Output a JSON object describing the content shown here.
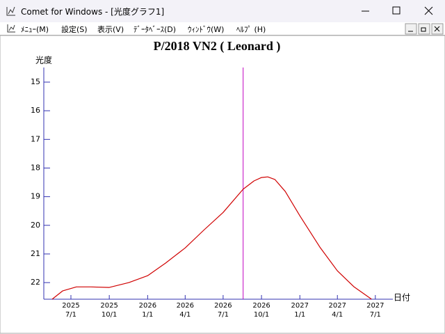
{
  "window": {
    "title": "Comet for Windows - [光度グラフ1]",
    "menu": [
      "ﾒﾆｭｰ(M)",
      "設定(S)",
      "表示(V)",
      "ﾃﾞｰﾀﾍﾞｰｽ(D)",
      "ｳｨﾝﾄﾞｳ(W)",
      "ﾍﾙﾌﾟ (H)"
    ]
  },
  "chart_data": {
    "type": "line",
    "title": "P/2018 VN2 ( Leonard )",
    "y_label": "光度",
    "x_label": "日付",
    "ylim": [
      22.58,
      14.49
    ],
    "yticks": [
      15,
      16,
      17,
      18,
      19,
      20,
      21,
      22
    ],
    "xlim": [
      "2025-04-27",
      "2027-08-12"
    ],
    "xticks": [
      {
        "value": "2025-07-01",
        "label": [
          "2025",
          "7/1"
        ]
      },
      {
        "value": "2025-10-01",
        "label": [
          "2025",
          "10/1"
        ]
      },
      {
        "value": "2026-01-01",
        "label": [
          "2026",
          "1/1"
        ]
      },
      {
        "value": "2026-04-01",
        "label": [
          "2026",
          "4/1"
        ]
      },
      {
        "value": "2026-07-01",
        "label": [
          "2026",
          "7/1"
        ]
      },
      {
        "value": "2026-10-01",
        "label": [
          "2026",
          "10/1"
        ]
      },
      {
        "value": "2027-01-01",
        "label": [
          "2027",
          "1/1"
        ]
      },
      {
        "value": "2027-04-01",
        "label": [
          "2027",
          "4/1"
        ]
      },
      {
        "value": "2027-07-01",
        "label": [
          "2027",
          "7/1"
        ]
      }
    ],
    "now_line": {
      "x": "2026-08-18",
      "color": "#c000c0"
    },
    "axis_color": "#3030b0",
    "series": [
      {
        "color": "#d00000",
        "x": [
          "2025-05-17",
          "2025-06-11",
          "2025-07-14",
          "2025-08-17",
          "2025-10-01",
          "2025-11-17",
          "2026-01-01",
          "2026-02-13",
          "2026-04-01",
          "2026-05-17",
          "2026-07-01",
          "2026-08-18",
          "2026-09-13",
          "2026-10-01",
          "2026-10-16",
          "2026-11-02",
          "2026-11-27",
          "2027-01-01",
          "2027-02-18",
          "2027-04-01",
          "2027-05-11",
          "2027-06-22"
        ],
        "values": [
          22.58,
          22.29,
          22.15,
          22.15,
          22.17,
          22.0,
          21.76,
          21.32,
          20.79,
          20.15,
          19.55,
          18.74,
          18.45,
          18.33,
          18.31,
          18.4,
          18.82,
          19.67,
          20.76,
          21.59,
          22.15,
          22.58
        ]
      }
    ]
  }
}
